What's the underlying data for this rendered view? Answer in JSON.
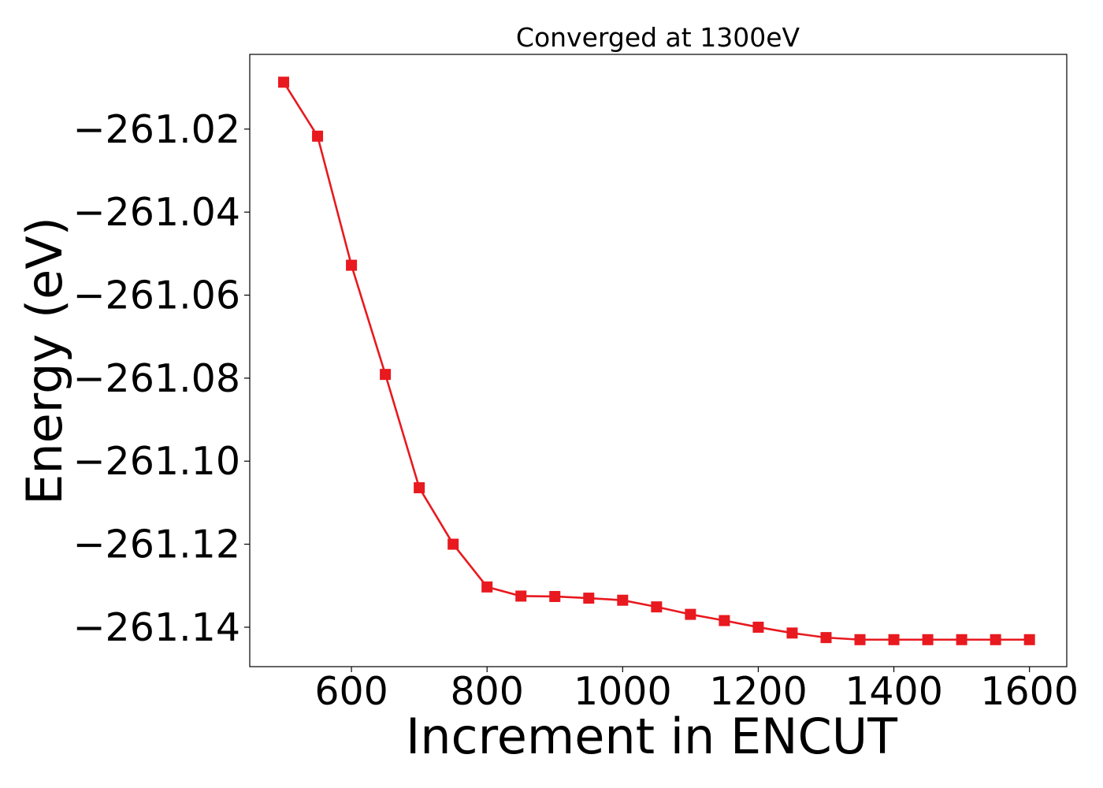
{
  "chart_data": {
    "type": "line",
    "title": "Converged at 1300eV",
    "xlabel": "Increment in ENCUT",
    "ylabel": "Energy (eV)",
    "xlim": [
      450,
      1655
    ],
    "ylim": [
      -261.1495,
      -261.002
    ],
    "xticks": [
      600,
      800,
      1000,
      1200,
      1400,
      1600
    ],
    "yticks": [
      -261.02,
      -261.04,
      -261.06,
      -261.08,
      -261.1,
      -261.12,
      -261.14
    ],
    "grid": false,
    "legend": "none",
    "series": [
      {
        "color": "#e8191f",
        "marker": "square",
        "x": [
          500,
          550,
          600,
          650,
          700,
          750,
          800,
          850,
          900,
          950,
          1000,
          1050,
          1100,
          1150,
          1200,
          1250,
          1300,
          1350,
          1400,
          1450,
          1500,
          1550,
          1600
        ],
        "y": [
          -261.0087,
          -261.0217,
          -261.0528,
          -261.0791,
          -261.1064,
          -261.12,
          -261.1303,
          -261.1325,
          -261.1326,
          -261.133,
          -261.1335,
          -261.1351,
          -261.1369,
          -261.1384,
          -261.14,
          -261.1414,
          -261.1425,
          -261.143,
          -261.143,
          -261.143,
          -261.143,
          -261.143,
          -261.143
        ]
      }
    ]
  }
}
